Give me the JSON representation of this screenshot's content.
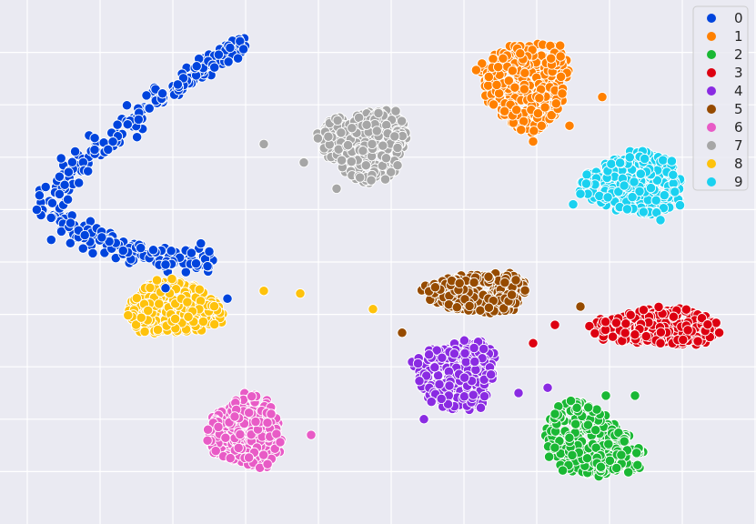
{
  "chart_data": {
    "type": "scatter",
    "title": "",
    "xlabel": "",
    "ylabel": "",
    "xlim": [
      -100,
      100
    ],
    "ylim": [
      -100,
      100
    ],
    "grid": true,
    "background": "#eaeaf2",
    "legend_position": "top-right",
    "series": [
      {
        "name": "0",
        "color": "#0044dd",
        "shape": "band",
        "path": [
          [
            -90,
            15
          ],
          [
            -94,
            25
          ],
          [
            -88,
            35
          ],
          [
            -80,
            44
          ],
          [
            -70,
            54
          ],
          [
            -60,
            65
          ],
          [
            -52,
            74
          ],
          [
            -45,
            80
          ],
          [
            -40,
            84
          ]
        ],
        "thickness": 5,
        "n": 210,
        "stragglers": [
          [
            -62,
            -10
          ],
          [
            -45,
            -14
          ],
          [
            -62,
            -1
          ],
          [
            -50,
            4
          ]
        ]
      },
      {
        "name": "1",
        "color": "#ff8000",
        "shape": "blob",
        "cx": 37,
        "cy": 68,
        "rx": 14,
        "ry": 19,
        "n": 330,
        "stragglers": [
          [
            39,
            46
          ],
          [
            49,
            52
          ],
          [
            58,
            63
          ]
        ]
      },
      {
        "name": "2",
        "color": "#1ab834",
        "shape": "blob",
        "cx": 55,
        "cy": -69,
        "rx": 13,
        "ry": 18,
        "rot": 40,
        "n": 300,
        "stragglers": [
          [
            59,
            -51
          ],
          [
            67,
            -51
          ],
          [
            45,
            -58
          ]
        ]
      },
      {
        "name": "3",
        "color": "#dd0011",
        "shape": "blob",
        "cx": 73,
        "cy": -25,
        "rx": 21,
        "ry": 8,
        "n": 320,
        "stragglers": [
          [
            45,
            -24
          ],
          [
            39,
            -31
          ],
          [
            74,
            -31
          ]
        ]
      },
      {
        "name": "4",
        "color": "#8a2be2",
        "shape": "blob",
        "cx": 18,
        "cy": -43,
        "rx": 13,
        "ry": 16,
        "n": 300,
        "stragglers": [
          [
            43,
            -48
          ],
          [
            35,
            -50
          ],
          [
            9,
            -60
          ]
        ]
      },
      {
        "name": "5",
        "color": "#964B00",
        "shape": "blob",
        "cx": 24,
        "cy": -12,
        "rx": 16,
        "ry": 9,
        "n": 280,
        "stragglers": [
          [
            52,
            -17
          ],
          [
            3,
            -27
          ]
        ]
      },
      {
        "name": "6",
        "color": "#e85bc6",
        "shape": "blob",
        "cx": -40,
        "cy": -65,
        "rx": 12,
        "ry": 16,
        "n": 300,
        "stragglers": [
          [
            -22,
            -66
          ],
          [
            -33,
            -58
          ],
          [
            -43,
            -59
          ]
        ]
      },
      {
        "name": "7",
        "color": "#a6a6a6",
        "shape": "blob",
        "cx": -7,
        "cy": 45,
        "rx": 14,
        "ry": 16,
        "n": 280,
        "stragglers": [
          [
            -24,
            38
          ],
          [
            -35,
            45
          ],
          [
            -15,
            28
          ]
        ]
      },
      {
        "name": "8",
        "color": "#fec20c",
        "shape": "blob",
        "cx": -60,
        "cy": -18,
        "rx": 15,
        "ry": 12,
        "n": 300,
        "stragglers": [
          [
            -35,
            -11
          ],
          [
            -25,
            -12
          ],
          [
            -5,
            -18
          ]
        ]
      },
      {
        "name": "9",
        "color": "#1ad1f0",
        "shape": "blob",
        "cx": 67,
        "cy": 30,
        "rx": 16,
        "ry": 14,
        "n": 300,
        "stragglers": [
          [
            52,
            26
          ],
          [
            50,
            22
          ],
          [
            74,
            16
          ]
        ]
      }
    ]
  }
}
